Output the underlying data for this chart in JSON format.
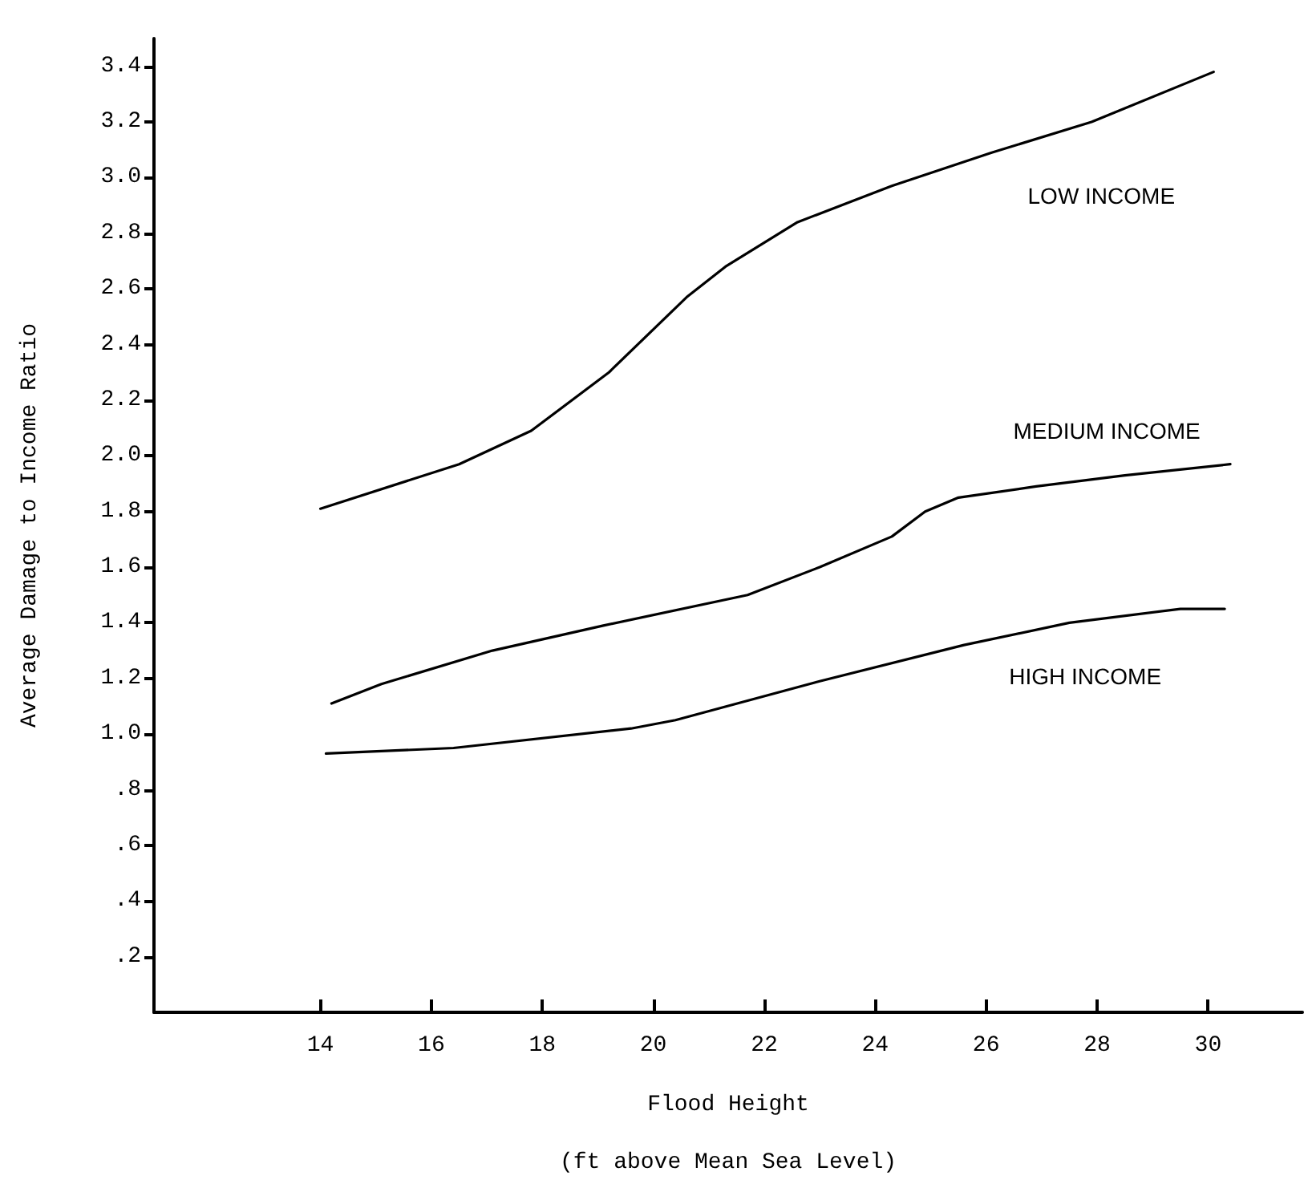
{
  "chart_data": {
    "type": "line",
    "xlabel": "Flood Height\n(ft above Mean Sea Level)",
    "ylabel": "Average Damage to Income Ratio",
    "xlim": [
      11,
      31.7
    ],
    "xticks": [
      14,
      16,
      18,
      20,
      22,
      24,
      26,
      28,
      30
    ],
    "ylim": [
      0,
      3.5
    ],
    "yticks": [
      {
        "value": 0.2,
        "label": ".2"
      },
      {
        "value": 0.4,
        "label": ".4"
      },
      {
        "value": 0.6,
        "label": ".6"
      },
      {
        "value": 0.8,
        "label": ".8"
      },
      {
        "value": 1.0,
        "label": "1.0"
      },
      {
        "value": 1.2,
        "label": "1.2"
      },
      {
        "value": 1.4,
        "label": "1.4"
      },
      {
        "value": 1.6,
        "label": "1.6"
      },
      {
        "value": 1.8,
        "label": "1.8"
      },
      {
        "value": 2.0,
        "label": "2.0"
      },
      {
        "value": 2.2,
        "label": "2.2"
      },
      {
        "value": 2.4,
        "label": "2.4"
      },
      {
        "value": 2.6,
        "label": "2.6"
      },
      {
        "value": 2.8,
        "label": "2.8"
      },
      {
        "value": 3.0,
        "label": "3.0"
      },
      {
        "value": 3.2,
        "label": "3.2"
      },
      {
        "value": 3.4,
        "label": "3.4"
      }
    ],
    "grid": false,
    "marker": "none",
    "line_style": "solid",
    "series": [
      {
        "name": "LOW INCOME",
        "color": "#000000",
        "x": [
          14.0,
          16.5,
          17.8,
          19.2,
          20.6,
          21.3,
          22.6,
          24.3,
          26.1,
          27.9,
          30.1
        ],
        "values": [
          1.81,
          1.97,
          2.09,
          2.3,
          2.57,
          2.68,
          2.84,
          2.97,
          3.09,
          3.2,
          3.38
        ]
      },
      {
        "name": "MEDIUM INCOME",
        "color": "#000000",
        "x": [
          14.2,
          15.1,
          17.1,
          19.1,
          21.7,
          23.0,
          24.3,
          24.9,
          25.5,
          26.9,
          28.5,
          30.4
        ],
        "values": [
          1.11,
          1.18,
          1.3,
          1.39,
          1.5,
          1.6,
          1.71,
          1.8,
          1.85,
          1.89,
          1.93,
          1.97
        ]
      },
      {
        "name": "HIGH INCOME",
        "color": "#000000",
        "x": [
          14.1,
          16.4,
          19.6,
          20.4,
          23.0,
          25.6,
          27.5,
          29.5,
          30.3
        ],
        "values": [
          0.93,
          0.95,
          1.02,
          1.05,
          1.19,
          1.32,
          1.4,
          1.45,
          1.45
        ]
      }
    ]
  }
}
